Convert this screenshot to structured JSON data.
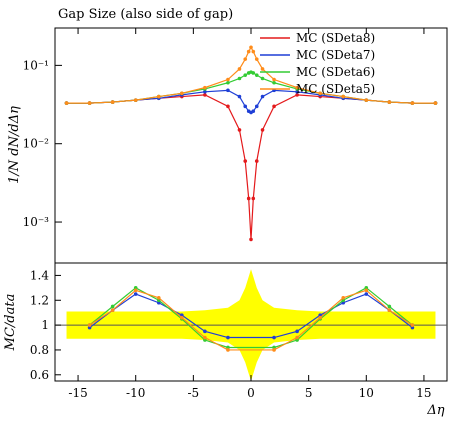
{
  "chart_data": [
    {
      "type": "line",
      "panel": "main",
      "title": "Gap Size (also side of gap)",
      "ylabel": "1/N dN/dΔη",
      "yscale": "log",
      "xlim": [
        -17,
        17
      ],
      "ylim": [
        0.0003,
        0.3
      ],
      "y_ticks": [
        0.001,
        0.01,
        0.1
      ],
      "y_tick_labels": [
        "10⁻³",
        "10⁻²",
        "10⁻¹"
      ],
      "legend_position": "top-right",
      "x": [
        -16,
        -14,
        -12,
        -10,
        -8,
        -6,
        -4,
        -2,
        -1,
        -0.5,
        -0.2,
        0,
        0.2,
        0.5,
        1,
        2,
        4,
        6,
        8,
        10,
        12,
        14,
        16
      ],
      "series": [
        {
          "name": "MC (SDeta8)",
          "color": "#e41a1c",
          "values": [
            0.033,
            0.033,
            0.034,
            0.036,
            0.038,
            0.04,
            0.042,
            0.03,
            0.015,
            0.006,
            0.002,
            0.0006,
            0.002,
            0.006,
            0.015,
            0.03,
            0.042,
            0.04,
            0.038,
            0.036,
            0.034,
            0.033,
            0.033
          ]
        },
        {
          "name": "MC (SDeta7)",
          "color": "#1f3fd6",
          "values": [
            0.033,
            0.033,
            0.034,
            0.036,
            0.038,
            0.042,
            0.046,
            0.048,
            0.04,
            0.03,
            0.026,
            0.025,
            0.026,
            0.03,
            0.04,
            0.048,
            0.046,
            0.042,
            0.038,
            0.036,
            0.034,
            0.033,
            0.033
          ]
        },
        {
          "name": "MC (SDeta6)",
          "color": "#33cc33",
          "values": [
            0.033,
            0.033,
            0.034,
            0.036,
            0.04,
            0.044,
            0.05,
            0.06,
            0.068,
            0.075,
            0.08,
            0.082,
            0.08,
            0.075,
            0.068,
            0.06,
            0.05,
            0.044,
            0.04,
            0.036,
            0.034,
            0.033,
            0.033
          ]
        },
        {
          "name": "MC (SDeta5)",
          "color": "#ff8c1a",
          "values": [
            0.033,
            0.033,
            0.034,
            0.036,
            0.04,
            0.044,
            0.052,
            0.066,
            0.09,
            0.12,
            0.15,
            0.17,
            0.15,
            0.12,
            0.09,
            0.066,
            0.052,
            0.044,
            0.04,
            0.036,
            0.034,
            0.033,
            0.033
          ]
        }
      ]
    },
    {
      "type": "line",
      "panel": "ratio",
      "xlabel": "Δη",
      "ylabel": "MC/data",
      "xlim": [
        -17,
        17
      ],
      "ylim": [
        0.55,
        1.5
      ],
      "x_ticks": [
        -15,
        -10,
        -5,
        0,
        5,
        10,
        15
      ],
      "x_tick_labels": [
        "-15",
        "-10",
        "-5",
        "0",
        "5",
        "10",
        "15"
      ],
      "y_ticks": [
        0.6,
        0.8,
        1.0,
        1.2,
        1.4
      ],
      "y_tick_labels": [
        "0.6",
        "0.8",
        "1",
        "1.2",
        "1.4"
      ],
      "data_uncertainty_band": {
        "color": "#ffff00",
        "x": [
          -16,
          -14,
          -12,
          -10,
          -8,
          -6,
          -4,
          -2,
          -1,
          -0.5,
          0,
          0.5,
          1,
          2,
          4,
          6,
          8,
          10,
          12,
          14,
          16
        ],
        "half_width": [
          0.11,
          0.11,
          0.11,
          0.11,
          0.11,
          0.11,
          0.12,
          0.14,
          0.2,
          0.3,
          0.45,
          0.3,
          0.2,
          0.14,
          0.12,
          0.11,
          0.11,
          0.11,
          0.11,
          0.11,
          0.11
        ]
      },
      "x": [
        -14,
        -12,
        -10,
        -8,
        -6,
        -4,
        -2,
        2,
        4,
        6,
        8,
        10,
        12,
        14
      ],
      "series": [
        {
          "name": "MC (SDeta7)",
          "color": "#1f3fd6",
          "values": [
            0.98,
            1.12,
            1.25,
            1.18,
            1.08,
            0.95,
            0.9,
            0.9,
            0.95,
            1.08,
            1.18,
            1.25,
            1.12,
            0.98
          ]
        },
        {
          "name": "MC (SDeta6)",
          "color": "#33cc33",
          "values": [
            1.0,
            1.15,
            1.3,
            1.2,
            1.05,
            0.88,
            0.82,
            0.82,
            0.88,
            1.05,
            1.2,
            1.3,
            1.15,
            1.0
          ]
        },
        {
          "name": "MC (SDeta5)",
          "color": "#ff8c1a",
          "values": [
            1.0,
            1.12,
            1.28,
            1.22,
            1.06,
            0.9,
            0.8,
            0.8,
            0.9,
            1.06,
            1.22,
            1.28,
            1.12,
            1.0
          ]
        }
      ]
    }
  ]
}
